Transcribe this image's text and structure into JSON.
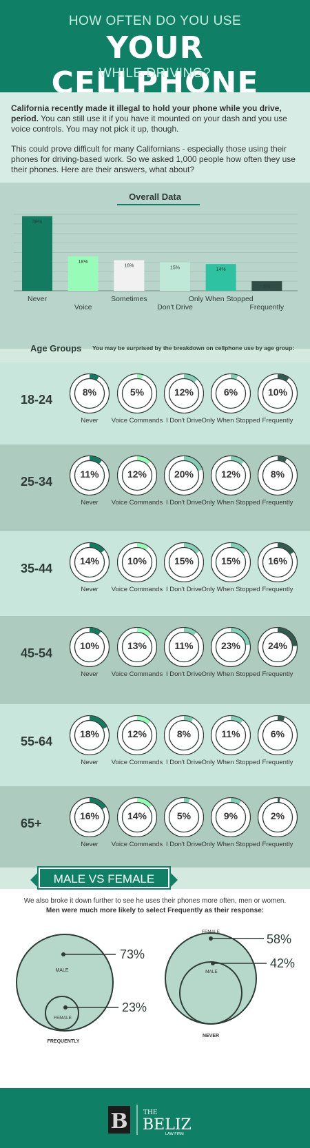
{
  "header": {
    "line1": "HOW OFTEN DO YOU USE",
    "line2": "YOUR CELLPHONE",
    "line3": "WHILE DRIVING?"
  },
  "intro": {
    "bold": "California recently made it illegal to hold your phone while you drive, period.",
    "rest": " You can still use it if you have it mounted on your dash and you use voice controls. You may not pick it up, though.",
    "p2": "This could prove difficult for many Californians - especially those using their phones for driving-based work. So we asked 1,000 people how often they use their phones. Here are their answers, what about?"
  },
  "chart_data": {
    "type": "bar",
    "title": "Overall Data",
    "categories": [
      "Never",
      "Voice",
      "Sometimes",
      "Don't Drive",
      "Only When Stopped",
      "Frequently"
    ],
    "values": [
      39,
      18,
      16,
      15,
      14,
      5
    ],
    "value_labels": [
      "39%",
      "18%",
      "16%",
      "15%",
      "14%",
      "5%"
    ],
    "colors": [
      "#137c60",
      "#98fbb8",
      "#f1f1f1",
      "#bfe8d8",
      "#2ec1a2",
      "#2f4d45"
    ],
    "ylim": [
      0,
      40
    ],
    "grid": true
  },
  "age_section": {
    "title": "Age Groups",
    "subtitle": "You may be surprised by the breakdown on cellphone use by age group:"
  },
  "age_categories": [
    "Never",
    "Voice Commands",
    "I Don't Drive",
    "Only When Stopped",
    "Frequently"
  ],
  "age_colors": [
    "#137c60",
    "#98fbb8",
    "#84cdb6",
    "#84cdb6",
    "#345a4f"
  ],
  "age_groups": [
    {
      "label": "18-24",
      "values": [
        8,
        5,
        12,
        6,
        10
      ],
      "labels": [
        "8%",
        "5%",
        "12%",
        "6%",
        "10%"
      ]
    },
    {
      "label": "25-34",
      "values": [
        11,
        12,
        20,
        12,
        8
      ],
      "labels": [
        "11%",
        "12%",
        "20%",
        "12%",
        "8%"
      ]
    },
    {
      "label": "35-44",
      "values": [
        14,
        10,
        15,
        15,
        16
      ],
      "labels": [
        "14%",
        "10%",
        "15%",
        "15%",
        "16%"
      ]
    },
    {
      "label": "45-54",
      "values": [
        10,
        13,
        11,
        23,
        24
      ],
      "labels": [
        "10%",
        "13%",
        "11%",
        "23%",
        "24%"
      ]
    },
    {
      "label": "55-64",
      "values": [
        18,
        12,
        8,
        11,
        6
      ],
      "labels": [
        "18%",
        "12%",
        "8%",
        "11%",
        "6%"
      ]
    },
    {
      "label": "65+",
      "values": [
        16,
        14,
        5,
        9,
        2
      ],
      "labels": [
        "16%",
        "14%",
        "5%",
        "9%",
        "2%"
      ]
    }
  ],
  "gender": {
    "tab": "MALE VS FEMALE",
    "line1": "We also broke it down further to see he uses their phones more often, men or women.",
    "line2": "Men were much more likely to select Frequently as their response:",
    "frequently": {
      "caption": "FREQUENTLY",
      "male_label": "MALE",
      "male_value": "73%",
      "female_label": "FEMALE",
      "female_value": "23%"
    },
    "never": {
      "caption": "NEVER",
      "female_label": "FEMALE",
      "female_value": "58%",
      "male_label": "MALE",
      "male_value": "42%"
    }
  },
  "footer": {
    "logo_letter": "B",
    "brand_small": "THE",
    "brand_name": "BELIZ",
    "brand_sub": "LAW FIRM"
  },
  "colors": {
    "primary": "#0f8066",
    "light_bg": "#d6ece4",
    "band_light": "#c9e6dc",
    "band_dark": "#aecbc0"
  }
}
